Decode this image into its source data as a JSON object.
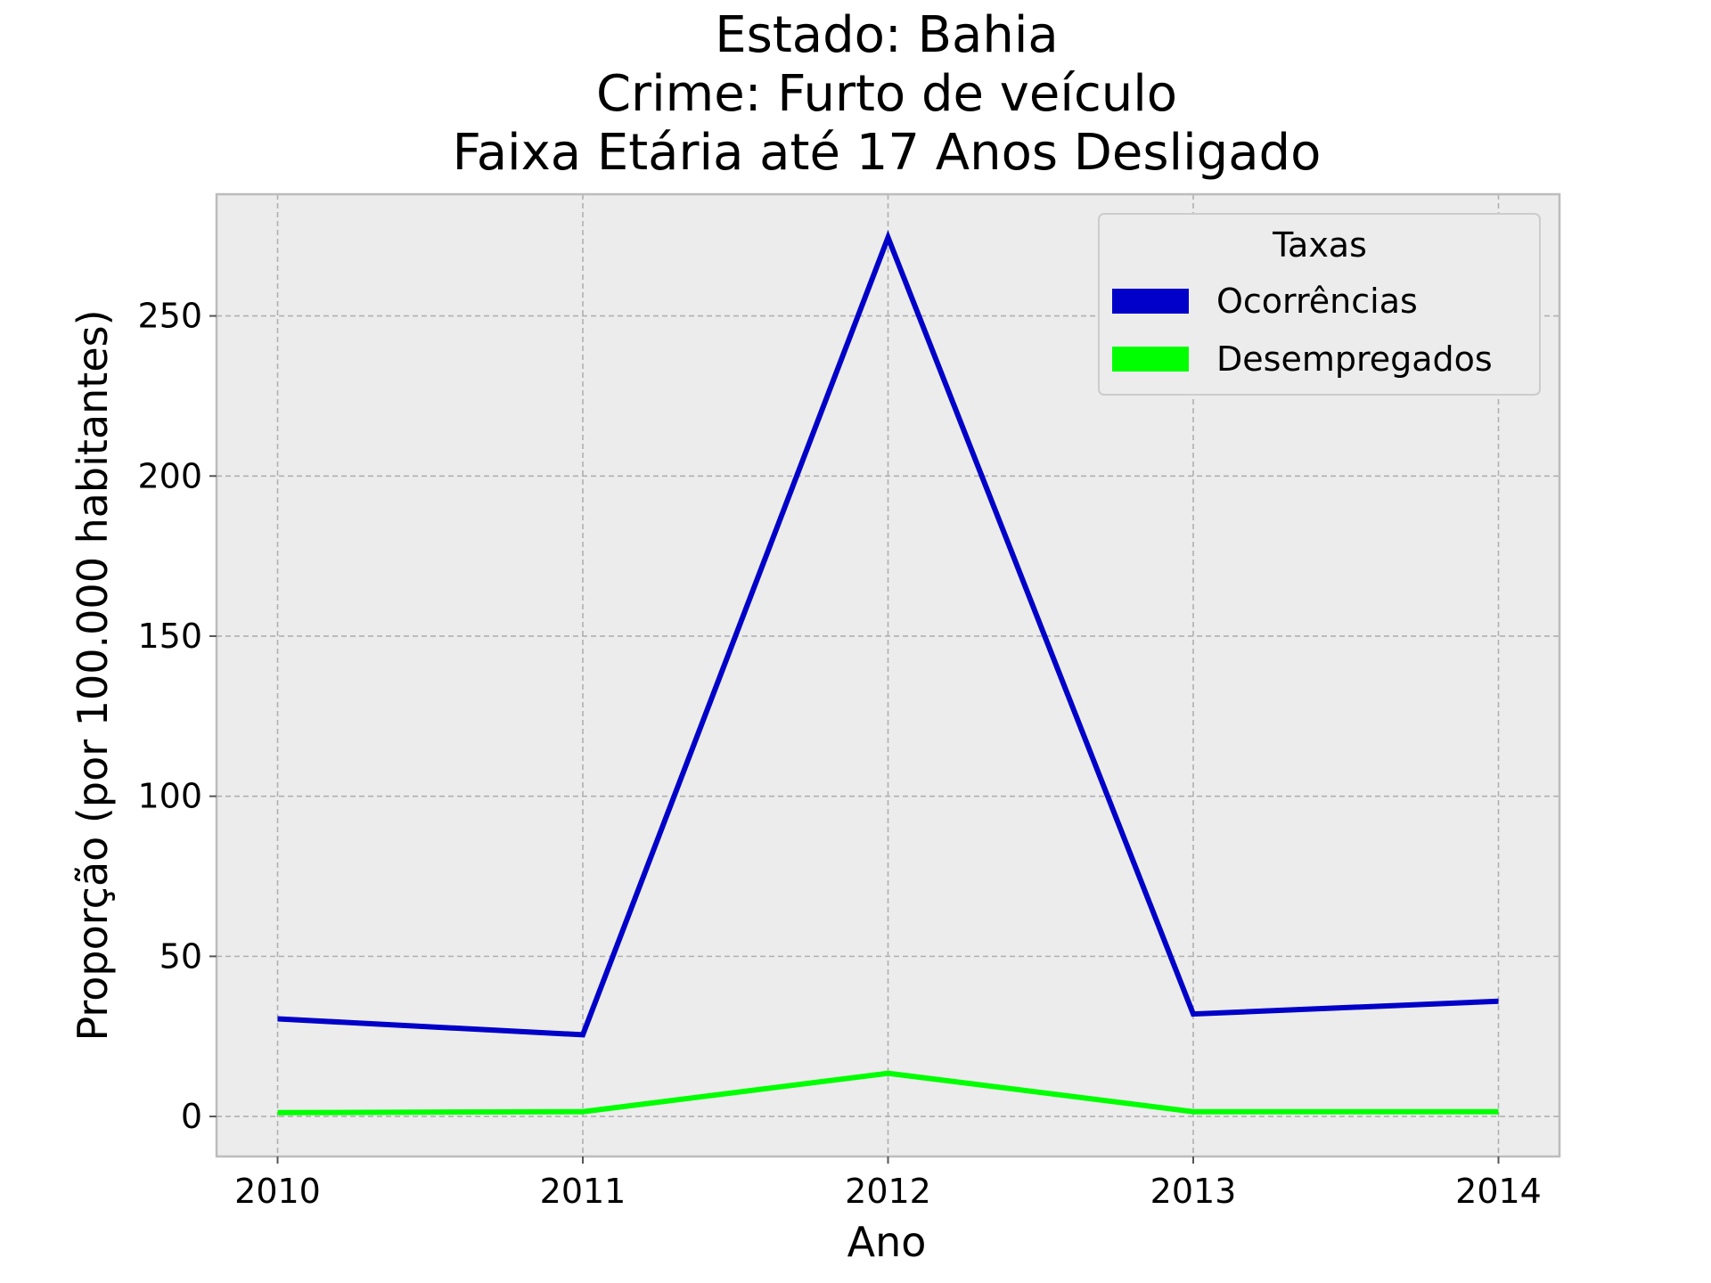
{
  "chart_data": {
    "type": "line",
    "title_lines": [
      "Estado: Bahia",
      "Crime: Furto de veículo",
      "Faixa Etária até 17 Anos   Desligado"
    ],
    "xlabel": "Ano",
    "ylabel": "Proporção (por 100.000 habitantes)",
    "x": [
      2010,
      2011,
      2012,
      2013,
      2014
    ],
    "x_tick_labels": [
      "2010",
      "2011",
      "2012",
      "2013",
      "2014"
    ],
    "y_ticks": [
      0,
      50,
      100,
      150,
      200,
      250
    ],
    "y_tick_labels": [
      "0",
      "50",
      "100",
      "150",
      "200",
      "250"
    ],
    "xlim": [
      2009.8,
      2014.2
    ],
    "ylim": [
      -12.5,
      288
    ],
    "grid": true,
    "legend": {
      "title": "Taxas",
      "position": "top-right"
    },
    "series": [
      {
        "name": "Ocorrências",
        "color": "#0000c8",
        "values": [
          30.5,
          25.5,
          274.5,
          32,
          36
        ]
      },
      {
        "name": "Desempregados",
        "color": "#00ff00",
        "values": [
          1.2,
          1.5,
          13.5,
          1.5,
          1.5
        ]
      }
    ],
    "plot_background": "#ececec",
    "frame_color": "#bcbcbc"
  }
}
